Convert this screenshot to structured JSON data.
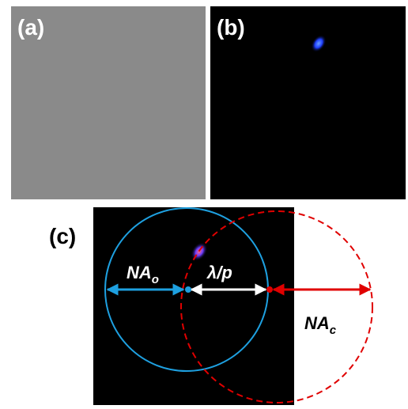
{
  "panels": {
    "a": {
      "label": "(a)"
    },
    "b": {
      "label": "(b)"
    },
    "c": {
      "label": "(c)"
    }
  },
  "annotations": {
    "objective_na": {
      "text": "NA",
      "sub": "o"
    },
    "shift": {
      "text": "λ/p"
    },
    "condenser_na": {
      "text": "NA",
      "sub": "c"
    }
  }
}
